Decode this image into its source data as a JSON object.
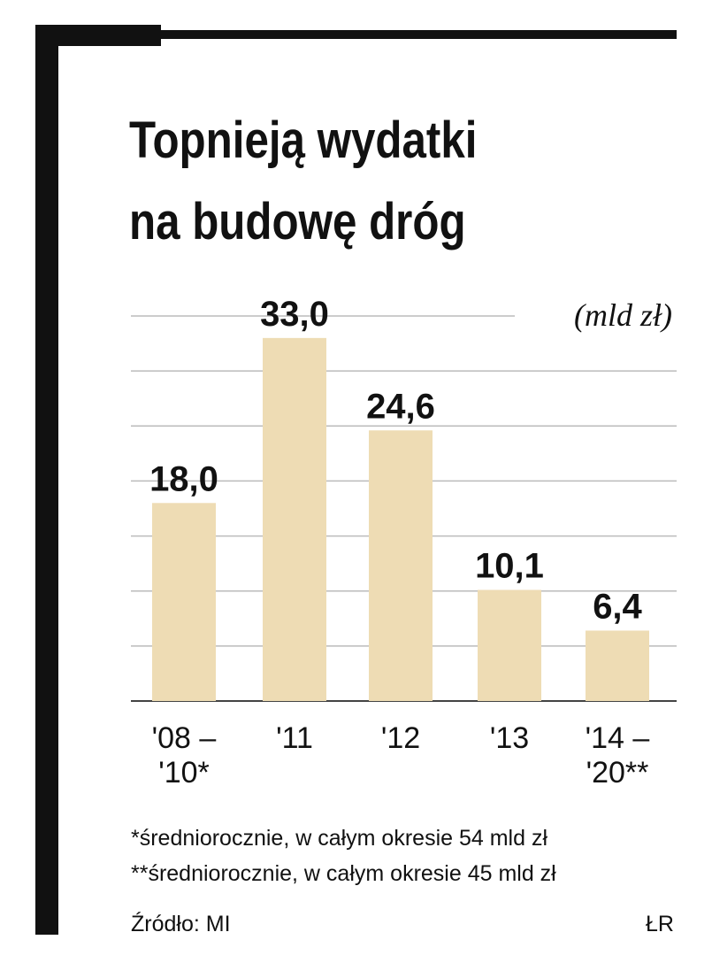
{
  "chart_data": {
    "type": "bar",
    "title": [
      "Topnieją wydatki",
      "na budowę dróg"
    ],
    "unit": "(mld zł)",
    "categories": [
      "'08 –\n'10*",
      "'11",
      "'12",
      "'13",
      "'14 –\n'20**"
    ],
    "values": [
      18.0,
      33.0,
      24.6,
      10.1,
      6.4
    ],
    "value_labels": [
      "18,0",
      "33,0",
      "24,6",
      "10,1",
      "6,4"
    ],
    "color": "#eedcb4",
    "ylim": [
      0,
      35
    ],
    "yticks": [
      0,
      5,
      10,
      15,
      20,
      25,
      30,
      35
    ],
    "grid": true,
    "footnotes": [
      "*średniorocznie, w całym okresie 54 mld zł",
      "**średniorocznie, w całym okresie 45 mld zł"
    ],
    "source": "Źródło: MI",
    "author": "ŁR"
  }
}
